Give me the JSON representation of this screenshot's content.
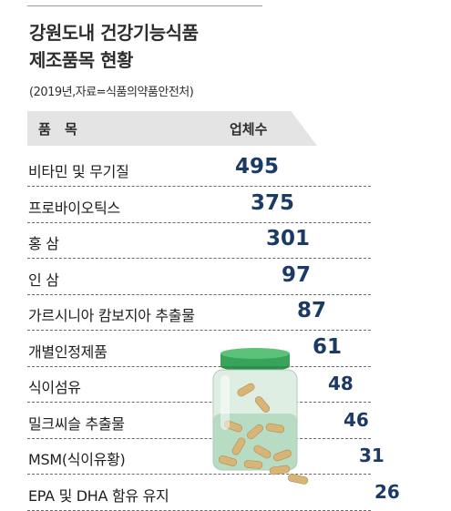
{
  "title_line1": "강원도내 건강기능식품",
  "title_line2": "제조품목 현황",
  "source": "(2019년,자료=식품의약품안전처)",
  "chart_data": {
    "type": "table",
    "title": "강원도내 건강기능식품 제조품목 현황",
    "columns": [
      "품 목",
      "업체수"
    ],
    "categories": [
      "비타민 및 무기질",
      "프로바이오틱스",
      "홍 삼",
      "인 삼",
      "가르시니아 캄보지아 추출물",
      "개별인정제품",
      "식이섬유",
      "밀크씨슬 추출물",
      "MSM(식이유황)",
      "EPA 및 DHA 함유 유지"
    ],
    "values": [
      495,
      375,
      301,
      97,
      87,
      61,
      48,
      46,
      31,
      26
    ],
    "value_labels": [
      "495",
      "375",
      "301",
      "97",
      "87",
      "61",
      "48",
      "46",
      "31",
      "26"
    ]
  },
  "colors": {
    "value_text": "#1c3a66",
    "header_bg": "#e4e4e4",
    "bottle_cap": "#3aa35a",
    "capsule": "#d8b476"
  }
}
